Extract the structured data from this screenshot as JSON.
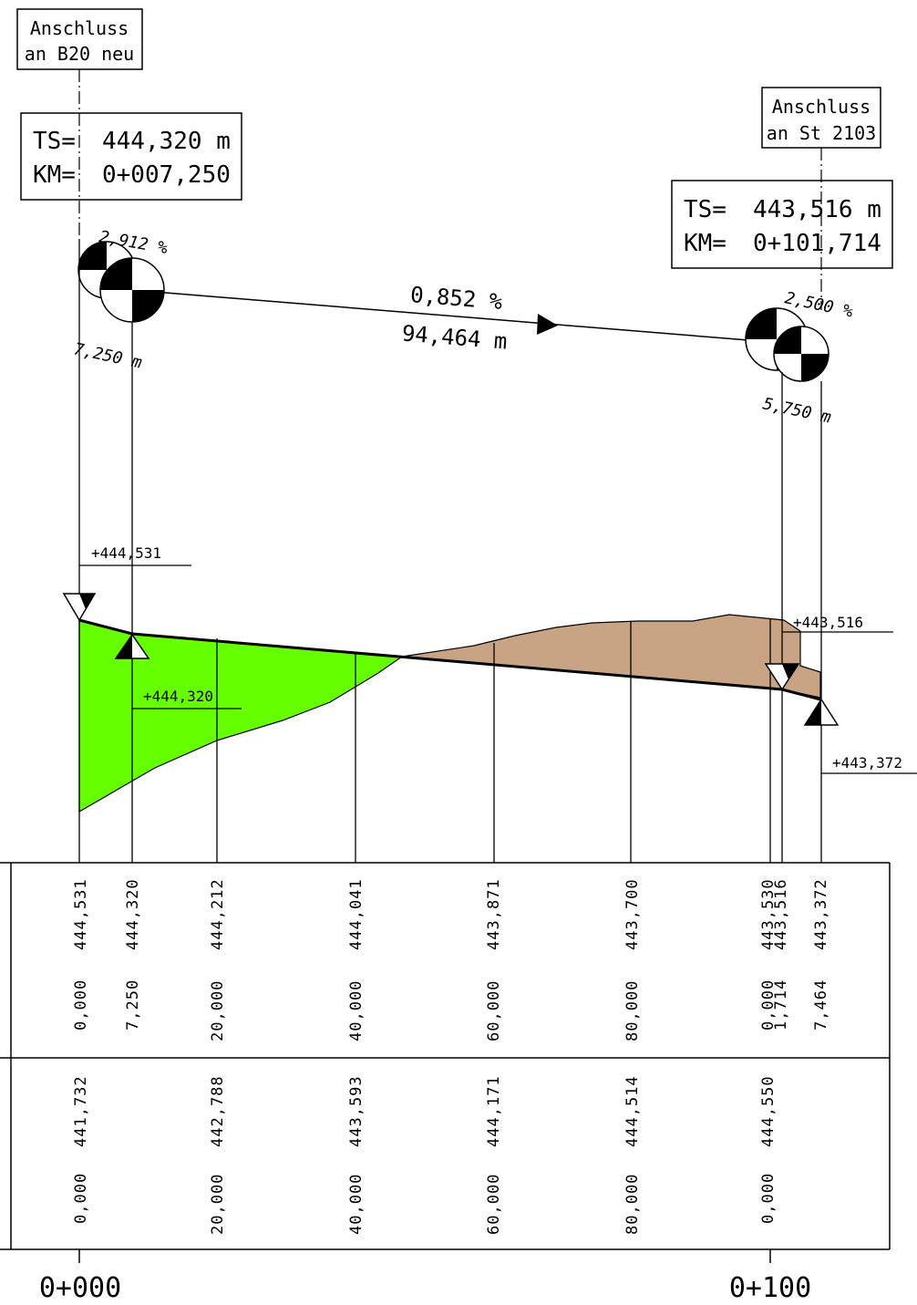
{
  "start_station": {
    "label_line1": "Anschluss",
    "label_line2": "an B20 neu",
    "ts_key": "TS=",
    "ts_value": "444,320 m",
    "km_key": "KM=",
    "km_value": "0+007,250",
    "grade_in": "2,912 %",
    "curve_length": "7,250 m"
  },
  "end_station": {
    "label_line1": "Anschluss",
    "label_line2": "an St 2103",
    "ts_key": "TS=",
    "ts_value": "443,516 m",
    "km_key": "KM=",
    "km_value": "0+101,714",
    "grade_out": "2,500 %",
    "curve_length": "5,750 m"
  },
  "main_grade": {
    "percent": "0,852 %",
    "length": "94,464 m"
  },
  "elevation_marks": [
    {
      "text": "+444,531"
    },
    {
      "text": "+444,320"
    },
    {
      "text": "+443,516"
    },
    {
      "text": "+443,372"
    }
  ],
  "colors": {
    "fill_area": "#66ff00",
    "cut_area": "#c8a484",
    "line": "#000000"
  },
  "gradient_row": [
    {
      "station": "0,000",
      "elevation": "444,531"
    },
    {
      "station": "7,250",
      "elevation": "444,320"
    },
    {
      "station": "20,000",
      "elevation": "444,212"
    },
    {
      "station": "40,000",
      "elevation": "444,041"
    },
    {
      "station": "60,000",
      "elevation": "443,871"
    },
    {
      "station": "80,000",
      "elevation": "443,700"
    },
    {
      "station": "0,000",
      "elevation": "443,530"
    },
    {
      "station": "1,714",
      "elevation": "443,516"
    },
    {
      "station": "7,464",
      "elevation": "443,372"
    }
  ],
  "terrain_row": [
    {
      "station": "0,000",
      "elevation": "441,732"
    },
    {
      "station": "20,000",
      "elevation": "442,788"
    },
    {
      "station": "40,000",
      "elevation": "443,593"
    },
    {
      "station": "60,000",
      "elevation": "444,171"
    },
    {
      "station": "80,000",
      "elevation": "444,514"
    },
    {
      "station": "0,000",
      "elevation": "444,550"
    }
  ],
  "km_marks": [
    {
      "text": "0+000"
    },
    {
      "text": "0+100"
    }
  ]
}
